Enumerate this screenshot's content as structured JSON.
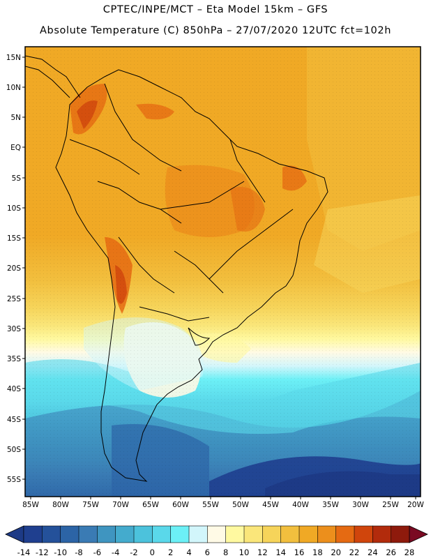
{
  "header": {
    "line1": "CPTEC/INPE/MCT –  Eta Model 15km – GFS",
    "line2": "Absolute Temperature (C) 850hPa – 27/07/2020 12UTC fct=102h"
  },
  "map": {
    "lat_labels": [
      "15N",
      "10N",
      "5N",
      "EQ",
      "5S",
      "10S",
      "15S",
      "20S",
      "25S",
      "30S",
      "35S",
      "40S",
      "45S",
      "50S",
      "55S"
    ],
    "lon_labels": [
      "85W",
      "80W",
      "75W",
      "70W",
      "65W",
      "60W",
      "55W",
      "50W",
      "45W",
      "40W",
      "35W",
      "30W",
      "25W",
      "20W"
    ]
  },
  "colorbar": {
    "labels": [
      "-14",
      "-12",
      "-10",
      "-8",
      "-6",
      "-4",
      "-2",
      "0",
      "2",
      "4",
      "6",
      "8",
      "10",
      "12",
      "14",
      "16",
      "18",
      "20",
      "22",
      "24",
      "26",
      "28"
    ],
    "colors": [
      "#1f3f8f",
      "#24519a",
      "#2c64a6",
      "#3a7bb4",
      "#3f95c0",
      "#44abcd",
      "#4cc2dc",
      "#5ad8ea",
      "#6cf0f6",
      "#d2f6fb",
      "#fffae6",
      "#fff9a0",
      "#fae67a",
      "#f6d45a",
      "#f2bf3e",
      "#f0a925",
      "#ec8f1c",
      "#e56a12",
      "#d0450c",
      "#b22b0c",
      "#8e1a0c"
    ],
    "under_color": "#1d3a86",
    "over_color": "#7a0a22"
  }
}
